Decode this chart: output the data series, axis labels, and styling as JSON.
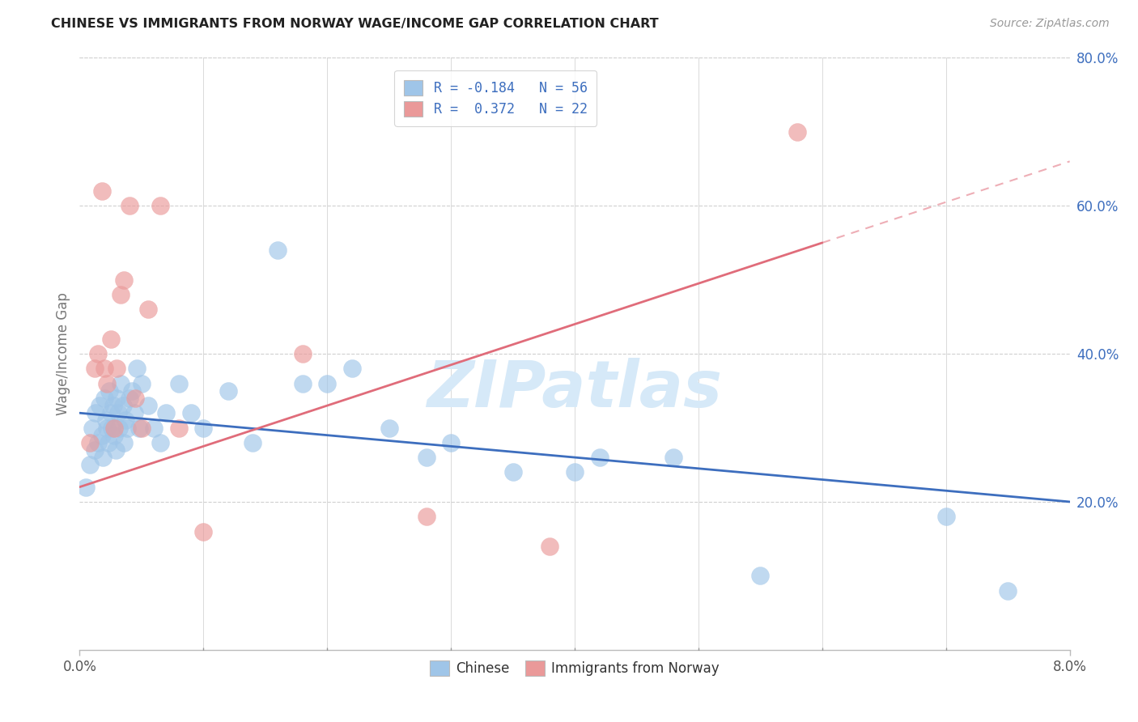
{
  "title": "CHINESE VS IMMIGRANTS FROM NORWAY WAGE/INCOME GAP CORRELATION CHART",
  "source": "Source: ZipAtlas.com",
  "ylabel": "Wage/Income Gap",
  "xmin": 0.0,
  "xmax": 8.0,
  "ymin": 0.0,
  "ymax": 80.0,
  "yticks": [
    20.0,
    40.0,
    60.0,
    80.0
  ],
  "xticks_minor": [
    1.0,
    2.0,
    3.0,
    4.0,
    5.0,
    6.0,
    7.0
  ],
  "blue_R": -0.184,
  "blue_N": 56,
  "pink_R": 0.372,
  "pink_N": 22,
  "blue_color": "#9fc5e8",
  "pink_color": "#ea9999",
  "blue_line_color": "#3d6ebe",
  "pink_line_color": "#e06c7a",
  "watermark_color": "#d6e9f8",
  "watermark": "ZIPatlas",
  "chinese_x": [
    0.05,
    0.08,
    0.1,
    0.12,
    0.13,
    0.15,
    0.16,
    0.18,
    0.19,
    0.2,
    0.21,
    0.22,
    0.23,
    0.24,
    0.25,
    0.26,
    0.27,
    0.28,
    0.29,
    0.3,
    0.31,
    0.32,
    0.33,
    0.35,
    0.36,
    0.37,
    0.38,
    0.4,
    0.42,
    0.44,
    0.46,
    0.48,
    0.5,
    0.55,
    0.6,
    0.65,
    0.7,
    0.8,
    0.9,
    1.0,
    1.2,
    1.4,
    1.6,
    1.8,
    2.0,
    2.2,
    2.5,
    2.8,
    3.0,
    3.5,
    4.0,
    4.2,
    4.8,
    5.5,
    7.0,
    7.5
  ],
  "chinese_y": [
    22,
    25,
    30,
    27,
    32,
    28,
    33,
    29,
    26,
    34,
    31,
    30,
    28,
    35,
    32,
    30,
    33,
    29,
    27,
    34,
    32,
    30,
    36,
    33,
    28,
    31,
    30,
    34,
    35,
    32,
    38,
    30,
    36,
    33,
    30,
    28,
    32,
    36,
    32,
    30,
    35,
    28,
    54,
    36,
    36,
    38,
    30,
    26,
    28,
    24,
    24,
    26,
    26,
    10,
    18,
    8
  ],
  "norway_x": [
    0.08,
    0.12,
    0.15,
    0.18,
    0.2,
    0.22,
    0.25,
    0.28,
    0.3,
    0.33,
    0.36,
    0.4,
    0.45,
    0.5,
    0.55,
    0.65,
    0.8,
    1.0,
    1.8,
    2.8,
    3.8,
    5.8
  ],
  "norway_y": [
    28,
    38,
    40,
    62,
    38,
    36,
    42,
    30,
    38,
    48,
    50,
    60,
    34,
    30,
    46,
    60,
    30,
    16,
    40,
    18,
    14,
    70
  ],
  "blue_trend_x0": 0.0,
  "blue_trend_y0": 32.0,
  "blue_trend_x1": 8.0,
  "blue_trend_y1": 20.0,
  "pink_trend_x0": 0.0,
  "pink_trend_y0": 22.0,
  "pink_trend_x1": 8.0,
  "pink_trend_y1": 66.0,
  "pink_solid_end": 6.0
}
